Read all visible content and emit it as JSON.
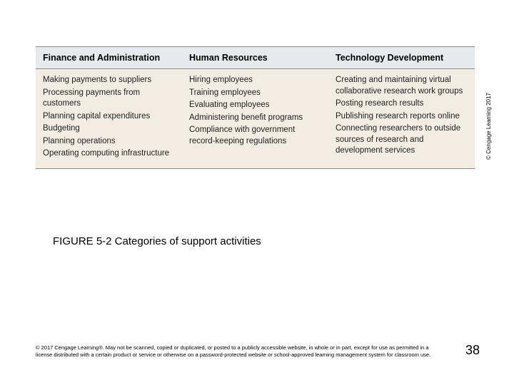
{
  "table": {
    "background_header": "#e6e9ee",
    "background_body": "#f2ece2",
    "border_color": "#888888",
    "header_fontsize": 12.5,
    "body_fontsize": 11.5,
    "columns": [
      {
        "header": "Finance and Administration",
        "items": [
          "Making payments to suppliers",
          "Processing payments from customers",
          "Planning capital expenditures",
          "Budgeting",
          "Planning operations",
          "Operating computing infrastructure"
        ]
      },
      {
        "header": "Human Resources",
        "items": [
          "Hiring employees",
          "Training employees",
          "Evaluating employees",
          "Administering benefit programs",
          "Compliance with government record-keeping regulations"
        ]
      },
      {
        "header": "Technology Development",
        "items": [
          "Creating and maintaining virtual collaborative research work groups",
          "Posting research results",
          "Publishing research reports online",
          "Connecting researchers to outside sources of research and development services"
        ]
      }
    ]
  },
  "side_copyright": "© Cengage Learning 2017",
  "caption": "FIGURE 5-2 Categories of support activities",
  "footer_text": "© 2017 Cengage Learning®. May not be scanned, copied or duplicated, or posted to a publicly accessible website, in whole or in part, except for use as permitted in a license distributed with a certain product or service or otherwise on a password-protected website or school-approved learning management system for classroom use.",
  "page_number": "38",
  "colors": {
    "page_bg": "#ffffff",
    "text": "#000000"
  }
}
